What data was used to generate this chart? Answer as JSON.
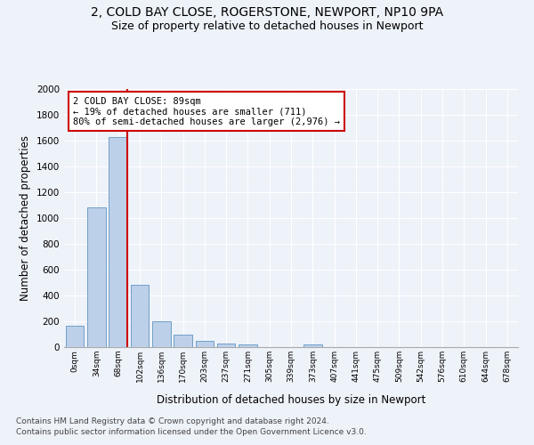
{
  "title1": "2, COLD BAY CLOSE, ROGERSTONE, NEWPORT, NP10 9PA",
  "title2": "Size of property relative to detached houses in Newport",
  "xlabel": "Distribution of detached houses by size in Newport",
  "ylabel": "Number of detached properties",
  "categories": [
    "0sqm",
    "34sqm",
    "68sqm",
    "102sqm",
    "136sqm",
    "170sqm",
    "203sqm",
    "237sqm",
    "271sqm",
    "305sqm",
    "339sqm",
    "373sqm",
    "407sqm",
    "441sqm",
    "475sqm",
    "509sqm",
    "542sqm",
    "576sqm",
    "610sqm",
    "644sqm",
    "678sqm"
  ],
  "values": [
    165,
    1085,
    1630,
    480,
    200,
    100,
    45,
    25,
    20,
    0,
    0,
    20,
    0,
    0,
    0,
    0,
    0,
    0,
    0,
    0,
    0
  ],
  "bar_color": "#bdd0e9",
  "bar_edge_color": "#6fa0c8",
  "vline_x_index": 2,
  "vline_color": "#cc0000",
  "annotation_text": "2 COLD BAY CLOSE: 89sqm\n← 19% of detached houses are smaller (711)\n80% of semi-detached houses are larger (2,976) →",
  "annotation_box_color": "#ffffff",
  "annotation_box_edge_color": "#cc0000",
  "ylim": [
    0,
    2000
  ],
  "yticks": [
    0,
    200,
    400,
    600,
    800,
    1000,
    1200,
    1400,
    1600,
    1800,
    2000
  ],
  "footer1": "Contains HM Land Registry data © Crown copyright and database right 2024.",
  "footer2": "Contains public sector information licensed under the Open Government Licence v3.0.",
  "bg_color": "#eef2f9",
  "grid_color": "#ffffff",
  "title1_fontsize": 10,
  "title2_fontsize": 9,
  "xlabel_fontsize": 8.5,
  "ylabel_fontsize": 8.5,
  "footer_fontsize": 6.5
}
